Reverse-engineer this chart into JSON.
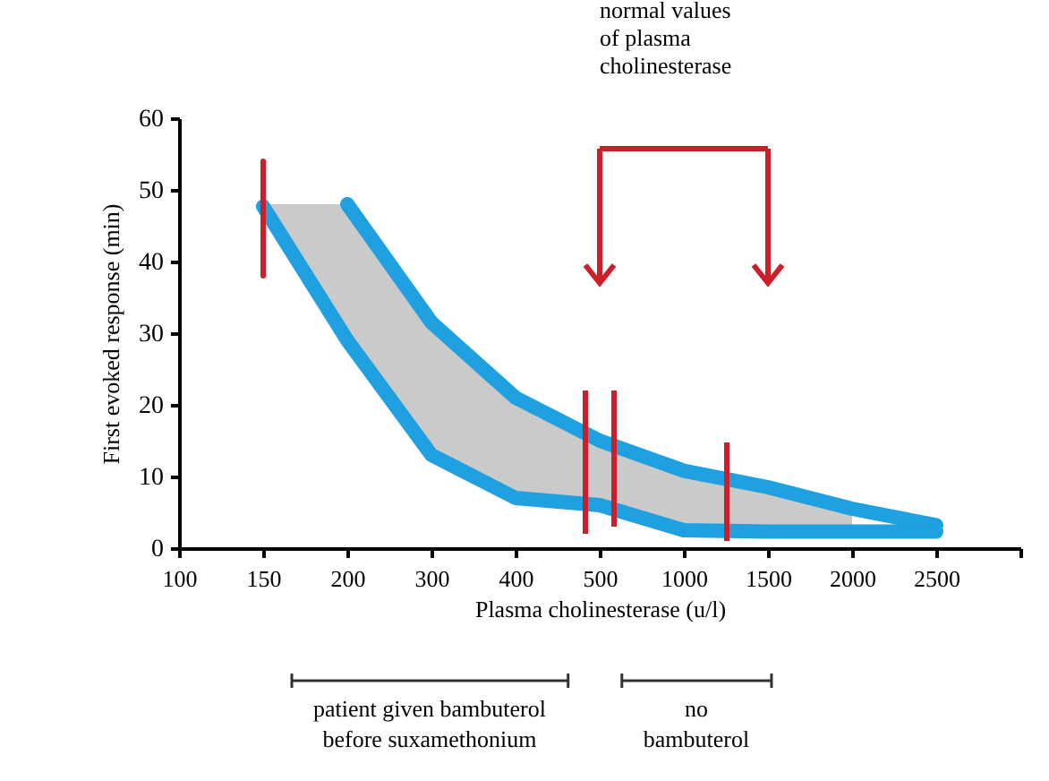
{
  "chart_data": {
    "type": "line",
    "xlabel": "Plasma cholinesterase (u/l)",
    "ylabel": "First evoked response (min)",
    "categories": [
      "100",
      "150",
      "200",
      "300",
      "400",
      "500",
      "1000",
      "1500",
      "2000",
      "2500",
      null
    ],
    "ylim": [
      0,
      60
    ],
    "yticks": [
      0,
      10,
      20,
      30,
      40,
      50,
      60
    ],
    "series": [
      {
        "type": "line",
        "color": "#1fa0e0",
        "values": [
          null,
          null,
          48,
          31.5,
          21,
          15,
          10.8,
          8.5,
          5.5,
          3.2,
          null
        ]
      },
      {
        "type": "line",
        "color": "#1fa0e0",
        "values": [
          null,
          47.7,
          29,
          13,
          7,
          6,
          2.5,
          2.3,
          2.3,
          2.3,
          null
        ],
        "lower": [
          null,
          47.7,
          29,
          13,
          7,
          6,
          2.5,
          2.3,
          2.3,
          null,
          null
        ],
        "upper": [
          null,
          48,
          48,
          31.5,
          21,
          15,
          10.8,
          8.5,
          5.5,
          null,
          null
        ]
      },
      {
        "type": "line",
        "color": "#cc1f2a",
        "x": [
          "150",
          "150"
        ],
        "values": [
          38,
          54
        ]
      }
    ],
    "ref_lines": [
      {
        "axis": "x",
        "value": "500",
        "label": "normal values\nof plasma\ncholinesterase",
        "color": "#cc1f2a"
      },
      {
        "axis": "x",
        "value": "1500",
        "color": "#cc1f2a"
      }
    ],
    "annotations": [
      "patient given bambuterol\nbefore suxamethonium",
      "no\nbambuterol"
    ],
    "grid": false,
    "marker": "none",
    "line_style": "solid"
  }
}
